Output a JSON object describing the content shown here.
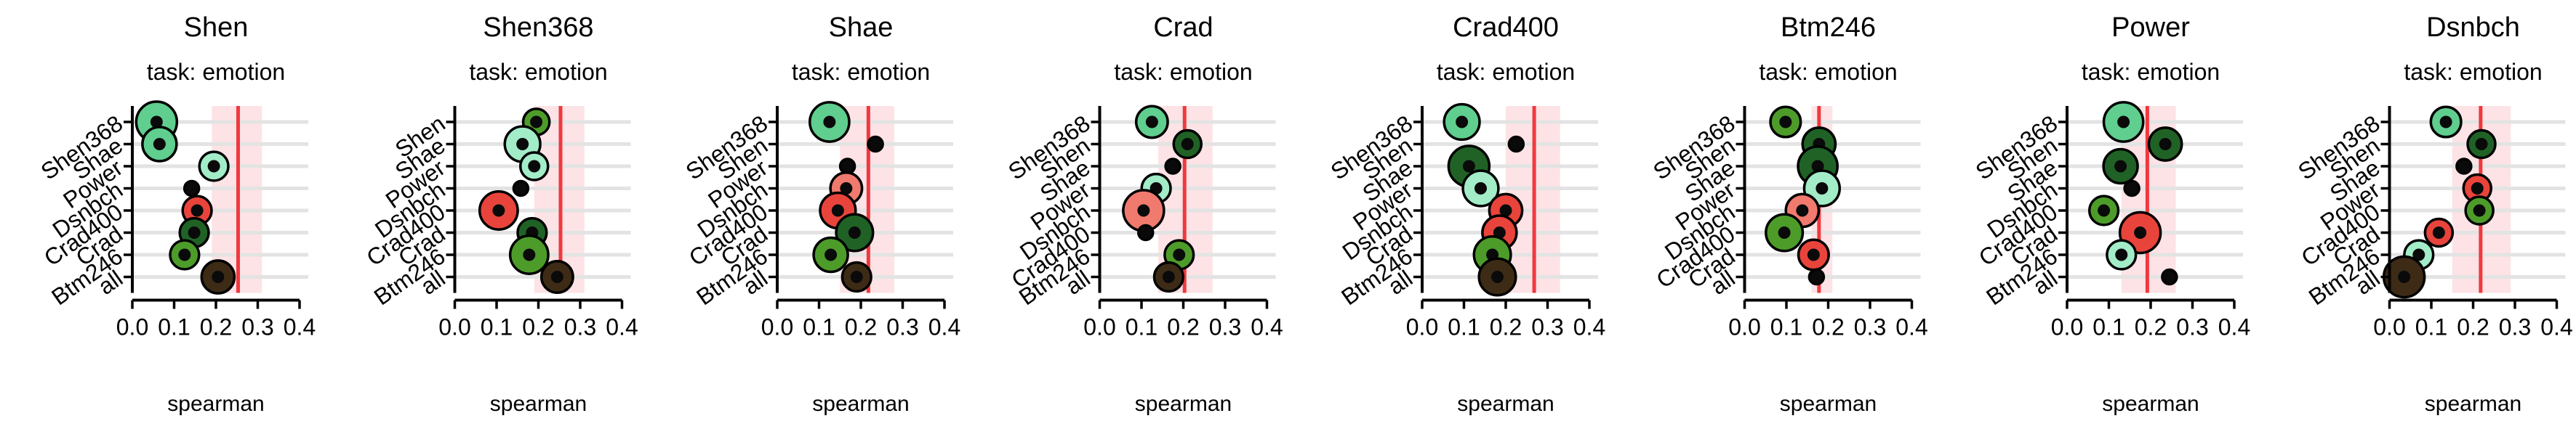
{
  "figure": {
    "subtitle": "task: emotion",
    "xlabel": "spearman",
    "xticks": [
      "0.0",
      "0.1",
      "0.2",
      "0.3",
      "0.4"
    ],
    "xlim": [
      0,
      0.4
    ]
  },
  "colors": {
    "band": "#fde3e6",
    "grid": "#e3e3e3",
    "refline": "#f2383d",
    "scale": [
      "#1a1a1a",
      "#3d2b16",
      "#206226",
      "#4d9c2a",
      "#5fce8e",
      "#a2ecc8",
      "#f07a6e",
      "#e8443c"
    ]
  },
  "chart_data": [
    {
      "type": "scatter",
      "title": "Shen",
      "ref": 0.253,
      "band": [
        0.19,
        0.31
      ],
      "points": [
        {
          "label": "Shen368",
          "x": 0.058,
          "size": 1.0,
          "color": "#5fce8e"
        },
        {
          "label": "Shae",
          "x": 0.065,
          "size": 0.75,
          "color": "#5fce8e"
        },
        {
          "label": "Power",
          "x": 0.195,
          "size": 0.55,
          "color": "#a2ecc8"
        },
        {
          "label": "Dsnbch",
          "x": 0.142,
          "size": 0.0,
          "color": "#1a1a1a"
        },
        {
          "label": "Crad400",
          "x": 0.155,
          "size": 0.55,
          "color": "#e8443c"
        },
        {
          "label": "Crad",
          "x": 0.148,
          "size": 0.55,
          "color": "#206226"
        },
        {
          "label": "Btm246",
          "x": 0.125,
          "size": 0.55,
          "color": "#4d9c2a"
        },
        {
          "label": "all",
          "x": 0.205,
          "size": 0.7,
          "color": "#3d2b16"
        }
      ]
    },
    {
      "type": "scatter",
      "title": "Shen368",
      "ref": 0.253,
      "band": [
        0.19,
        0.31
      ],
      "points": [
        {
          "label": "Shen",
          "x": 0.195,
          "size": 0.45,
          "color": "#4d9c2a"
        },
        {
          "label": "Shae",
          "x": 0.162,
          "size": 0.8,
          "color": "#a2ecc8"
        },
        {
          "label": "Power",
          "x": 0.19,
          "size": 0.5,
          "color": "#a2ecc8"
        },
        {
          "label": "Dsnbch",
          "x": 0.158,
          "size": 0.0,
          "color": "#1a1a1a"
        },
        {
          "label": "Crad400",
          "x": 0.105,
          "size": 0.9,
          "color": "#e8443c"
        },
        {
          "label": "Crad",
          "x": 0.185,
          "size": 0.55,
          "color": "#206226"
        },
        {
          "label": "Btm246",
          "x": 0.178,
          "size": 0.9,
          "color": "#4d9c2a"
        },
        {
          "label": "all",
          "x": 0.245,
          "size": 0.65,
          "color": "#3d2b16"
        }
      ]
    },
    {
      "type": "scatter",
      "title": "Shae",
      "ref": 0.218,
      "band": [
        0.15,
        0.28
      ],
      "points": [
        {
          "label": "Shen368",
          "x": 0.125,
          "size": 0.95,
          "color": "#5fce8e"
        },
        {
          "label": "Shen",
          "x": 0.235,
          "size": 0.0,
          "color": "#1a1a1a"
        },
        {
          "label": "Power",
          "x": 0.168,
          "size": 0.0,
          "color": "#1a1a1a"
        },
        {
          "label": "Dsnbch",
          "x": 0.165,
          "size": 0.65,
          "color": "#f07a6e"
        },
        {
          "label": "Crad400",
          "x": 0.145,
          "size": 0.8,
          "color": "#e8443c"
        },
        {
          "label": "Crad",
          "x": 0.185,
          "size": 0.85,
          "color": "#206226"
        },
        {
          "label": "Btm246",
          "x": 0.128,
          "size": 0.75,
          "color": "#4d9c2a"
        },
        {
          "label": "all",
          "x": 0.19,
          "size": 0.55,
          "color": "#3d2b16"
        }
      ]
    },
    {
      "type": "scatter",
      "title": "Crad",
      "ref": 0.203,
      "band": [
        0.14,
        0.27
      ],
      "points": [
        {
          "label": "Shen368",
          "x": 0.125,
          "size": 0.65,
          "color": "#5fce8e"
        },
        {
          "label": "Shen",
          "x": 0.21,
          "size": 0.5,
          "color": "#206226"
        },
        {
          "label": "Shae",
          "x": 0.175,
          "size": 0.0,
          "color": "#1a1a1a"
        },
        {
          "label": "Power",
          "x": 0.135,
          "size": 0.55,
          "color": "#a2ecc8"
        },
        {
          "label": "Dsnbch",
          "x": 0.105,
          "size": 1.0,
          "color": "#f07a6e"
        },
        {
          "label": "Crad400",
          "x": 0.11,
          "size": 0.0,
          "color": "#1a1a1a"
        },
        {
          "label": "Btm246",
          "x": 0.19,
          "size": 0.55,
          "color": "#4d9c2a"
        },
        {
          "label": "all",
          "x": 0.165,
          "size": 0.55,
          "color": "#3d2b16"
        }
      ]
    },
    {
      "type": "scatter",
      "title": "Crad400",
      "ref": 0.268,
      "band": [
        0.2,
        0.33
      ],
      "points": [
        {
          "label": "Shen368",
          "x": 0.095,
          "size": 0.8,
          "color": "#5fce8e"
        },
        {
          "label": "Shen",
          "x": 0.225,
          "size": 0.0,
          "color": "#1a1a1a"
        },
        {
          "label": "Shae",
          "x": 0.112,
          "size": 1.0,
          "color": "#206226"
        },
        {
          "label": "Power",
          "x": 0.14,
          "size": 0.8,
          "color": "#a2ecc8"
        },
        {
          "label": "Dsnbch",
          "x": 0.2,
          "size": 0.7,
          "color": "#e8443c"
        },
        {
          "label": "Crad",
          "x": 0.185,
          "size": 0.75,
          "color": "#e8443c"
        },
        {
          "label": "Btm246",
          "x": 0.168,
          "size": 0.85,
          "color": "#4d9c2a"
        },
        {
          "label": "all",
          "x": 0.18,
          "size": 0.85,
          "color": "#3d2b16"
        }
      ]
    },
    {
      "type": "scatter",
      "title": "Btm246",
      "ref": 0.178,
      "band": [
        0.16,
        0.21
      ],
      "points": [
        {
          "label": "Shen368",
          "x": 0.098,
          "size": 0.6,
          "color": "#4d9c2a"
        },
        {
          "label": "Shen",
          "x": 0.178,
          "size": 0.7,
          "color": "#206226"
        },
        {
          "label": "Shae",
          "x": 0.175,
          "size": 0.95,
          "color": "#206226"
        },
        {
          "label": "Power",
          "x": 0.185,
          "size": 0.8,
          "color": "#a2ecc8"
        },
        {
          "label": "Dsnbch",
          "x": 0.138,
          "size": 0.7,
          "color": "#f07a6e"
        },
        {
          "label": "Crad400",
          "x": 0.095,
          "size": 0.85,
          "color": "#4d9c2a"
        },
        {
          "label": "Crad",
          "x": 0.165,
          "size": 0.6,
          "color": "#e8443c"
        },
        {
          "label": "all",
          "x": 0.172,
          "size": 0.0,
          "color": "#1a1a1a"
        }
      ]
    },
    {
      "type": "scatter",
      "title": "Power",
      "ref": 0.192,
      "band": [
        0.13,
        0.26
      ],
      "points": [
        {
          "label": "Shen368",
          "x": 0.135,
          "size": 0.95,
          "color": "#5fce8e"
        },
        {
          "label": "Shen",
          "x": 0.235,
          "size": 0.7,
          "color": "#206226"
        },
        {
          "label": "Shae",
          "x": 0.128,
          "size": 0.75,
          "color": "#206226"
        },
        {
          "label": "Dsnbch",
          "x": 0.155,
          "size": 0.0,
          "color": "#1a1a1a"
        },
        {
          "label": "Crad400",
          "x": 0.088,
          "size": 0.55,
          "color": "#4d9c2a"
        },
        {
          "label": "Crad",
          "x": 0.175,
          "size": 1.0,
          "color": "#e8443c"
        },
        {
          "label": "Btm246",
          "x": 0.13,
          "size": 0.55,
          "color": "#a2ecc8"
        },
        {
          "label": "all",
          "x": 0.245,
          "size": 0.0,
          "color": "#1a1a1a"
        }
      ]
    },
    {
      "type": "scatter",
      "title": "Dsnbch",
      "ref": 0.218,
      "band": [
        0.15,
        0.29
      ],
      "points": [
        {
          "label": "Shen368",
          "x": 0.135,
          "size": 0.6,
          "color": "#5fce8e"
        },
        {
          "label": "Shen",
          "x": 0.22,
          "size": 0.5,
          "color": "#206226"
        },
        {
          "label": "Shae",
          "x": 0.178,
          "size": 0.0,
          "color": "#1a1a1a"
        },
        {
          "label": "Power",
          "x": 0.21,
          "size": 0.5,
          "color": "#e8443c"
        },
        {
          "label": "Crad400",
          "x": 0.215,
          "size": 0.5,
          "color": "#4d9c2a"
        },
        {
          "label": "Crad",
          "x": 0.118,
          "size": 0.5,
          "color": "#e8443c"
        },
        {
          "label": "Btm246",
          "x": 0.07,
          "size": 0.55,
          "color": "#a2ecc8"
        },
        {
          "label": "all",
          "x": 0.035,
          "size": 1.0,
          "color": "#3d2b16"
        }
      ]
    }
  ]
}
